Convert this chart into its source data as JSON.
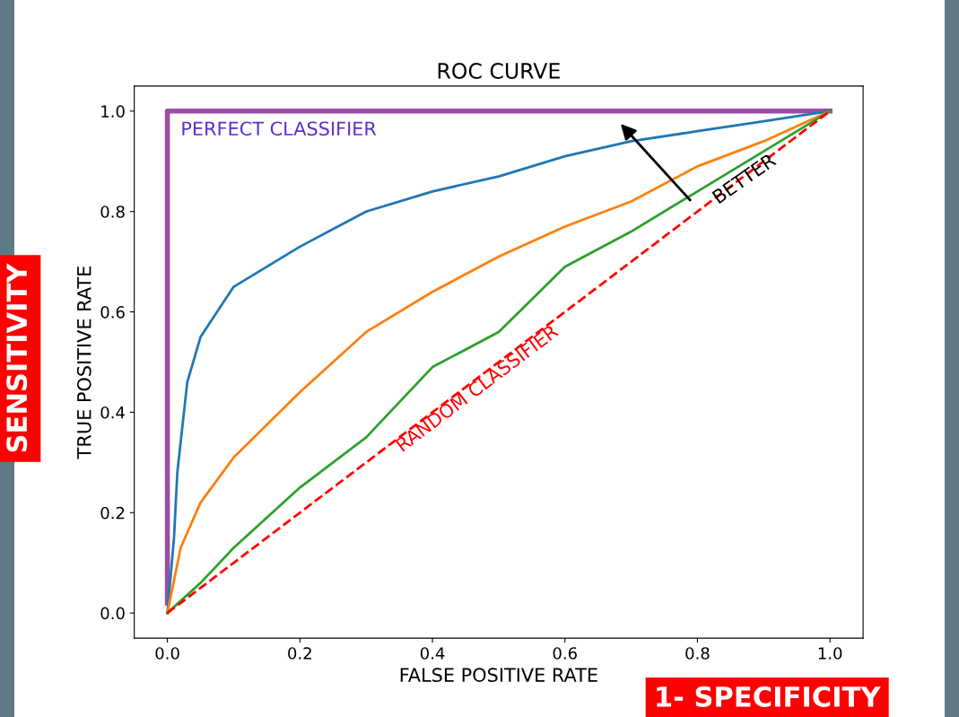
{
  "chart_data": {
    "type": "line",
    "title": "ROC CURVE",
    "xlabel": "FALSE POSITIVE RATE",
    "ylabel": "TRUE POSITIVE RATE",
    "xlim": [
      -0.05,
      1.05
    ],
    "ylim": [
      -0.05,
      1.05
    ],
    "xticks": [
      {
        "value": 0,
        "label": "0.0"
      },
      {
        "value": 0.2,
        "label": "0.2"
      },
      {
        "value": 0.4,
        "label": "0.4"
      },
      {
        "value": 0.6,
        "label": "0.6"
      },
      {
        "value": 0.8,
        "label": "0.8"
      },
      {
        "value": 1,
        "label": "1.0"
      }
    ],
    "yticks": [
      {
        "value": 0,
        "label": "0.0"
      },
      {
        "value": 0.2,
        "label": "0.2"
      },
      {
        "value": 0.4,
        "label": "0.4"
      },
      {
        "value": 0.6,
        "label": "0.6"
      },
      {
        "value": 0.8,
        "label": "0.8"
      },
      {
        "value": 1,
        "label": "1.0"
      }
    ],
    "series": [
      {
        "name": "PERFECT CLASSIFIER",
        "color": "#984ea3",
        "x": [
          0,
          0,
          1
        ],
        "values": [
          0.02,
          1,
          1
        ]
      },
      {
        "color": "#1f77b4",
        "x": [
          0,
          0.01,
          0.015,
          0.03,
          0.05,
          0.1,
          0.2,
          0.3,
          0.4,
          0.5,
          0.6,
          0.7,
          0.8,
          0.9,
          1
        ],
        "values": [
          0,
          0.15,
          0.28,
          0.46,
          0.55,
          0.65,
          0.73,
          0.8,
          0.84,
          0.87,
          0.91,
          0.94,
          0.96,
          0.98,
          1
        ]
      },
      {
        "color": "#ff7f0e",
        "x": [
          0,
          0.02,
          0.05,
          0.1,
          0.2,
          0.3,
          0.4,
          0.5,
          0.6,
          0.7,
          0.8,
          0.9,
          1
        ],
        "values": [
          0,
          0.13,
          0.22,
          0.31,
          0.44,
          0.56,
          0.64,
          0.71,
          0.77,
          0.82,
          0.89,
          0.94,
          1
        ]
      },
      {
        "color": "#2ca02c",
        "x": [
          0,
          0.05,
          0.1,
          0.2,
          0.3,
          0.4,
          0.5,
          0.6,
          0.7,
          0.8,
          0.9,
          1
        ],
        "values": [
          0,
          0.06,
          0.13,
          0.25,
          0.35,
          0.49,
          0.56,
          0.69,
          0.76,
          0.84,
          0.92,
          1
        ]
      },
      {
        "name": "RANDOM CLASSIFIER",
        "color": "#ff0000",
        "line_style": "dashed",
        "x": [
          0,
          1
        ],
        "values": [
          0,
          1
        ]
      }
    ],
    "annotations": [
      "BETTER",
      "SENSITIVITY",
      "1- SPECIFICITY"
    ]
  }
}
